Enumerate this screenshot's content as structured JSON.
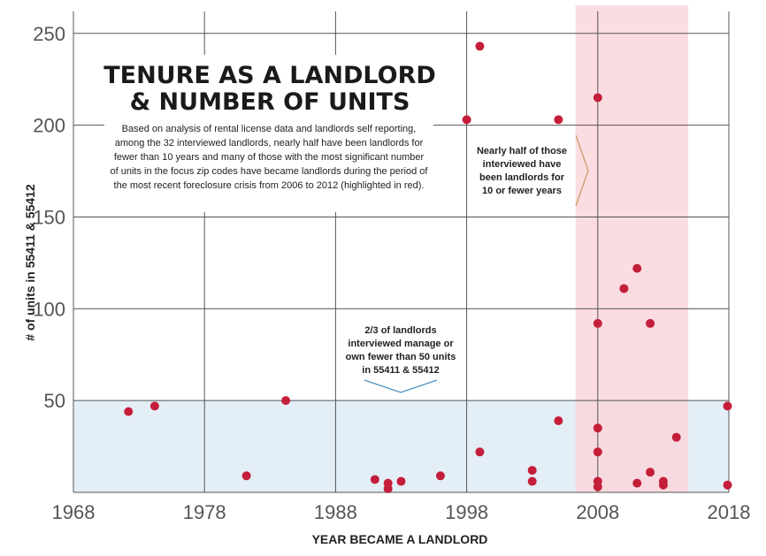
{
  "chart_data": {
    "type": "scatter",
    "title": [
      "TENURE AS A LANDLORD",
      "& NUMBER OF UNITS"
    ],
    "description": [
      "Based on analysis of rental license data and landlords self reporting,",
      "among the 32 interviewed landlords, nearly half have been landlords for",
      "fewer than 10 years and many of those with the most significant number",
      "of units in the focus zip codes have became landlords during the period of",
      "the most recent foreclosure crisis from 2006 to 2012 (highlighted in red)."
    ],
    "xlabel": "YEAR BECAME A LANDLORD",
    "ylabel": "# of units in 55411 & 55412",
    "xlim": [
      1968,
      2018
    ],
    "ylim": [
      0,
      262
    ],
    "x_ticks": [
      "1968",
      "1978",
      "1988",
      "1998",
      "2008",
      "2018"
    ],
    "y_ticks": [
      "50",
      "100",
      "150",
      "200",
      "250"
    ],
    "x_tick_values": [
      1968,
      1978,
      1988,
      1998,
      2008,
      2018
    ],
    "y_tick_values": [
      50,
      100,
      150,
      200,
      250
    ],
    "grid": true,
    "highlight_period": [
      2006.3,
      2014.9
    ],
    "highlight_color": "#f9d6dc",
    "low_band": [
      0,
      50
    ],
    "low_band_color": "#e3eef7",
    "point_color": "#c41e3a",
    "points": [
      {
        "x": 1972.2,
        "y": 44
      },
      {
        "x": 1974.2,
        "y": 47
      },
      {
        "x": 1981.2,
        "y": 9
      },
      {
        "x": 1984.2,
        "y": 50
      },
      {
        "x": 1991.0,
        "y": 7
      },
      {
        "x": 1992.0,
        "y": 5
      },
      {
        "x": 1992.0,
        "y": 2
      },
      {
        "x": 1993.0,
        "y": 6
      },
      {
        "x": 1996.0,
        "y": 9
      },
      {
        "x": 1998.0,
        "y": 203
      },
      {
        "x": 1999.0,
        "y": 243
      },
      {
        "x": 1999.0,
        "y": 22
      },
      {
        "x": 2003.0,
        "y": 12
      },
      {
        "x": 2003.0,
        "y": 6
      },
      {
        "x": 2005.0,
        "y": 203
      },
      {
        "x": 2005.0,
        "y": 39
      },
      {
        "x": 2008.0,
        "y": 215
      },
      {
        "x": 2008.0,
        "y": 92
      },
      {
        "x": 2008.0,
        "y": 35
      },
      {
        "x": 2008.0,
        "y": 22
      },
      {
        "x": 2008.0,
        "y": 6
      },
      {
        "x": 2008.0,
        "y": 3
      },
      {
        "x": 2010.0,
        "y": 111
      },
      {
        "x": 2011.0,
        "y": 122
      },
      {
        "x": 2011.0,
        "y": 5
      },
      {
        "x": 2012.0,
        "y": 92
      },
      {
        "x": 2012.0,
        "y": 11
      },
      {
        "x": 2013.0,
        "y": 6
      },
      {
        "x": 2013.0,
        "y": 4
      },
      {
        "x": 2014.0,
        "y": 30
      },
      {
        "x": 2017.9,
        "y": 47
      },
      {
        "x": 2017.9,
        "y": 4
      }
    ],
    "annotations": [
      {
        "lines": [
          [
            {
              "t": "Nearly half of those",
              "b": true
            }
          ],
          [
            {
              "t": "interviewed have",
              "b": true
            }
          ],
          [
            {
              "t": "been landlords for",
              "b": true
            }
          ],
          [
            {
              "t": "10 or fewer years",
              "b": true
            }
          ]
        ]
      },
      {
        "lines": [
          [
            {
              "t": "2/3 of landlords",
              "b": true
            }
          ],
          [
            {
              "t": "interviewed manage or",
              "b": true
            }
          ],
          [
            {
              "t": "own ",
              "b": true
            },
            {
              "t": "fewer than 50 units",
              "b": true
            }
          ],
          [
            {
              "t": "in 55411 & 55412",
              "b": true
            }
          ]
        ]
      }
    ]
  }
}
